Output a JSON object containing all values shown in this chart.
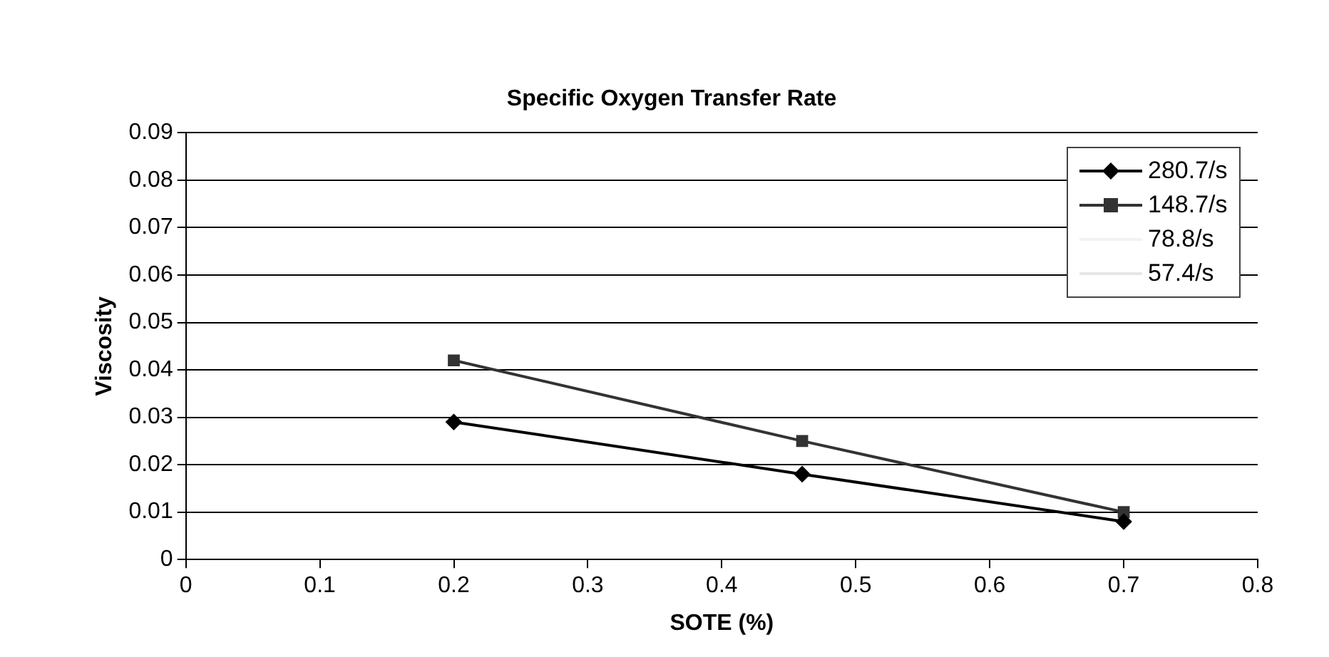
{
  "chart_data": {
    "type": "line",
    "title": "Specific Oxygen Transfer Rate",
    "xlabel": "SOTE (%)",
    "ylabel": "Viscosity",
    "x": [
      0.2,
      0.46,
      0.7
    ],
    "series": [
      {
        "name": "280.7/s",
        "color": "#000000",
        "marker": "diamond",
        "values": [
          0.029,
          0.018,
          0.008
        ]
      },
      {
        "name": "148.7/s",
        "color": "#333333",
        "marker": "square",
        "values": [
          0.042,
          0.025,
          0.01
        ]
      },
      {
        "name": "78.8/s",
        "color": "#f2f2f2",
        "marker": "none",
        "values": [
          null,
          null,
          null
        ]
      },
      {
        "name": "57.4/s",
        "color": "#e6e6e6",
        "marker": "none",
        "values": [
          null,
          null,
          null
        ]
      }
    ],
    "xlim": [
      0,
      0.8
    ],
    "xticks": [
      0,
      0.1,
      0.2,
      0.3,
      0.4,
      0.5,
      0.6,
      0.7,
      0.8
    ],
    "ylim": [
      0,
      0.09
    ],
    "yticks": [
      0,
      0.01,
      0.02,
      0.03,
      0.04,
      0.05,
      0.06,
      0.07,
      0.08,
      0.09
    ],
    "grid": "y",
    "legend": "top right",
    "line_style": "solid"
  }
}
